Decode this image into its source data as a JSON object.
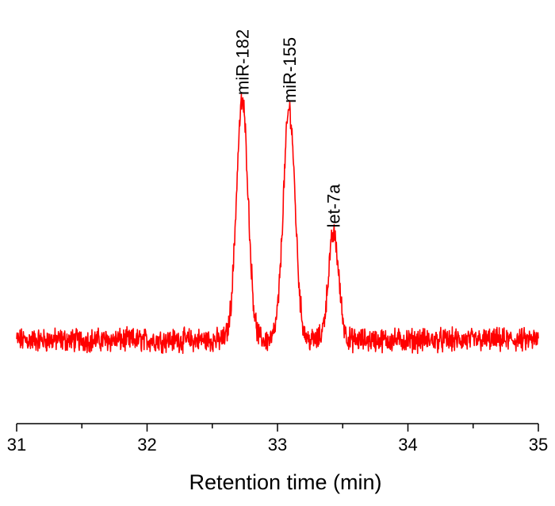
{
  "chart_data": {
    "type": "line",
    "title": "",
    "xlabel": "Retention time (min)",
    "ylabel": "",
    "xlim": [
      31,
      35
    ],
    "ylim": [
      0,
      1
    ],
    "x_ticks": [
      31,
      32,
      33,
      34,
      35
    ],
    "x_tick_labels": [
      "31",
      "32",
      "33",
      "34",
      "35"
    ],
    "y_axis_visible": false,
    "grid": false,
    "legend": "none",
    "line_color": "#ff0000",
    "baseline_level": 0.1,
    "noise_amplitude": 0.035,
    "peaks": [
      {
        "label": "miR-182",
        "x": 32.73,
        "height": 1.0,
        "width": 0.045
      },
      {
        "label": "miR-155",
        "x": 33.09,
        "height": 0.97,
        "width": 0.045
      },
      {
        "label": "let-7a",
        "x": 33.43,
        "height": 0.5,
        "width": 0.04
      }
    ],
    "annotations": [
      {
        "text": "miR-182",
        "x": 32.73,
        "y": 1.0,
        "rotation": -90
      },
      {
        "text": "miR-155",
        "x": 33.09,
        "y": 0.97,
        "rotation": -90
      },
      {
        "text": "let-7a",
        "x": 33.43,
        "y": 0.5,
        "rotation": -90
      }
    ]
  }
}
